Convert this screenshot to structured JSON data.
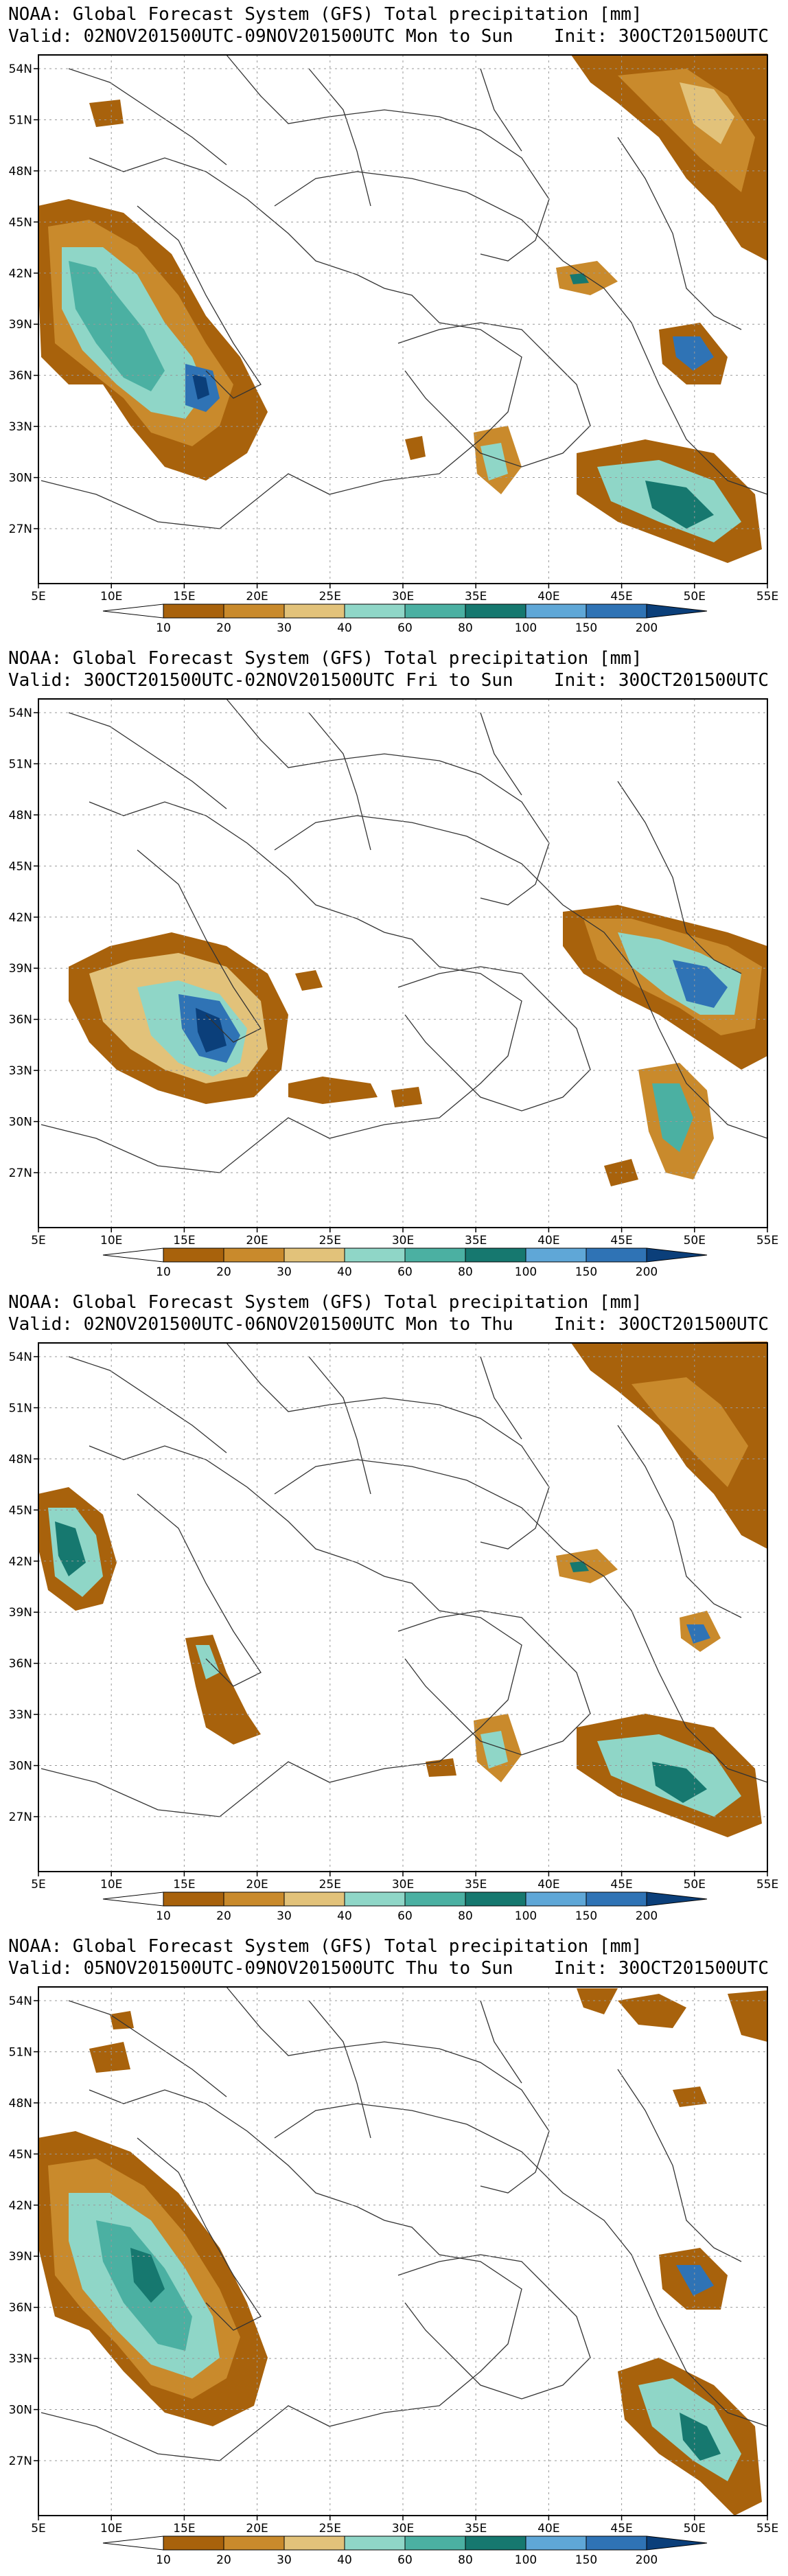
{
  "legend": {
    "levels": [
      "10",
      "20",
      "30",
      "40",
      "60",
      "80",
      "100",
      "150",
      "200"
    ],
    "colors": [
      "#a8620c",
      "#c98a2c",
      "#e2c27a",
      "#8fd6c7",
      "#4bb0a2",
      "#16786f",
      "#5fa7d7",
      "#2f73b5",
      "#0b3f7a"
    ]
  },
  "axes": {
    "lon_labels": [
      "5E",
      "10E",
      "15E",
      "20E",
      "25E",
      "30E",
      "35E",
      "40E",
      "45E",
      "50E",
      "55E"
    ],
    "lat_labels": [
      "54N",
      "51N",
      "48N",
      "45N",
      "42N",
      "39N",
      "36N",
      "33N",
      "30N",
      "27N"
    ]
  },
  "panels": [
    {
      "title": "NOAA: Global Forecast System (GFS) Total precipitation [mm]",
      "valid": "Valid: 02NOV201500UTC-09NOV201500UTC Mon to Sun",
      "init": "Init: 30OCT201500UTC"
    },
    {
      "title": "NOAA: Global Forecast System (GFS) Total precipitation [mm]",
      "valid": "Valid: 30OCT201500UTC-02NOV201500UTC Fri to Sun",
      "init": "Init: 30OCT201500UTC"
    },
    {
      "title": "NOAA: Global Forecast System (GFS) Total precipitation [mm]",
      "valid": "Valid: 02NOV201500UTC-06NOV201500UTC Mon to Thu",
      "init": "Init: 30OCT201500UTC"
    },
    {
      "title": "NOAA: Global Forecast System (GFS) Total precipitation [mm]",
      "valid": "Valid: 05NOV201500UTC-09NOV201500UTC Thu to Sun",
      "init": "Init: 30OCT201500UTC"
    }
  ]
}
